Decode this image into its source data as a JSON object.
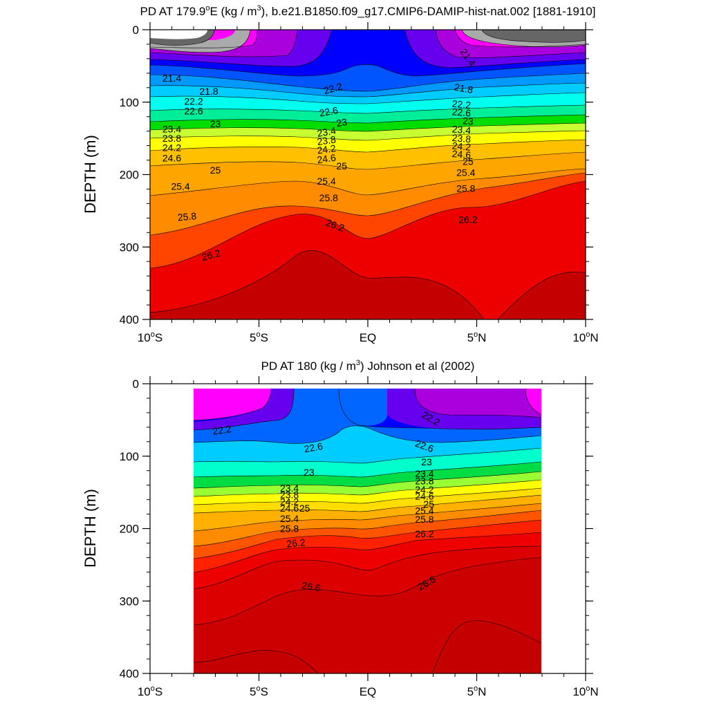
{
  "chart_data": [
    {
      "type": "contour",
      "title": "PD AT 179.9°E (kg / m³), b.e21.B1850.f09_g17.CMIP6-DAMIP-hist-nat.002 [1881-1910]",
      "title_parts": [
        "PD AT 179.9",
        "o",
        "E (kg / m",
        "3",
        "), b.e21.B1850.f09_g17.CMIP6-DAMIP-hist-nat.002 [1881-1910]"
      ],
      "ylabel": "DEPTH (m)",
      "xlim": [
        -10,
        10
      ],
      "ylim": [
        400,
        0
      ],
      "x_ticks": [
        {
          "value": -10,
          "label": "10",
          "sup": "o",
          "suffix": "S"
        },
        {
          "value": -5,
          "label": "5",
          "sup": "o",
          "suffix": "S"
        },
        {
          "value": 0,
          "label": "EQ",
          "sup": "",
          "suffix": ""
        },
        {
          "value": 5,
          "label": "5",
          "sup": "o",
          "suffix": "N"
        },
        {
          "value": 10,
          "label": "10",
          "sup": "o",
          "suffix": "N"
        }
      ],
      "y_ticks": [
        0,
        100,
        200,
        300,
        400
      ],
      "data_x_range": [
        -10,
        10
      ],
      "contour_labels": [
        {
          "x": -9.0,
          "y": 67,
          "text": "21.4",
          "rot": 0
        },
        {
          "x": -7.3,
          "y": 85,
          "text": "21.8",
          "rot": 0
        },
        {
          "x": -8.0,
          "y": 99,
          "text": "22.2",
          "rot": 0
        },
        {
          "x": -8.0,
          "y": 112,
          "text": "22.6",
          "rot": 0
        },
        {
          "x": -7.0,
          "y": 130,
          "text": "23",
          "rot": 0
        },
        {
          "x": -9.0,
          "y": 137,
          "text": "23.4",
          "rot": 0
        },
        {
          "x": -9.0,
          "y": 150,
          "text": "23.8",
          "rot": 0
        },
        {
          "x": -9.0,
          "y": 163,
          "text": "24.2",
          "rot": 0
        },
        {
          "x": -9.0,
          "y": 177,
          "text": "24.6",
          "rot": 0
        },
        {
          "x": -7.0,
          "y": 194,
          "text": "25",
          "rot": 0
        },
        {
          "x": -8.6,
          "y": 216,
          "text": "25.4",
          "rot": 0
        },
        {
          "x": -8.3,
          "y": 258,
          "text": "25.8",
          "rot": -5
        },
        {
          "x": -7.2,
          "y": 311,
          "text": "26.2",
          "rot": -15
        },
        {
          "x": -1.6,
          "y": 81,
          "text": "22.2",
          "rot": -15
        },
        {
          "x": -1.8,
          "y": 113,
          "text": "22.6",
          "rot": -10
        },
        {
          "x": -1.2,
          "y": 128,
          "text": "23",
          "rot": -10
        },
        {
          "x": -1.9,
          "y": 141,
          "text": "23.4",
          "rot": -10
        },
        {
          "x": -1.9,
          "y": 153,
          "text": "23.8",
          "rot": -8
        },
        {
          "x": -1.9,
          "y": 165,
          "text": "24.2",
          "rot": -8
        },
        {
          "x": -1.9,
          "y": 178,
          "text": "24.6",
          "rot": -8
        },
        {
          "x": -1.2,
          "y": 188,
          "text": "25",
          "rot": 0
        },
        {
          "x": -1.9,
          "y": 209,
          "text": "25.4",
          "rot": 0
        },
        {
          "x": -1.8,
          "y": 232,
          "text": "25.8",
          "rot": 0
        },
        {
          "x": -1.5,
          "y": 270,
          "text": "26.2",
          "rot": 20
        },
        {
          "x": 4.6,
          "y": 38,
          "text": "21.4",
          "rot": 55
        },
        {
          "x": 4.4,
          "y": 81,
          "text": "21.8",
          "rot": 10
        },
        {
          "x": 4.3,
          "y": 103,
          "text": "22.2",
          "rot": 5
        },
        {
          "x": 4.3,
          "y": 114,
          "text": "22.6",
          "rot": 5
        },
        {
          "x": 4.6,
          "y": 126,
          "text": "23",
          "rot": 5
        },
        {
          "x": 4.3,
          "y": 138,
          "text": "23.4",
          "rot": 5
        },
        {
          "x": 4.3,
          "y": 150,
          "text": "23.8",
          "rot": 5
        },
        {
          "x": 4.3,
          "y": 161,
          "text": "24.2",
          "rot": 5
        },
        {
          "x": 4.3,
          "y": 172,
          "text": "24.6",
          "rot": 5
        },
        {
          "x": 4.6,
          "y": 182,
          "text": "25",
          "rot": 0
        },
        {
          "x": 4.5,
          "y": 197,
          "text": "25.4",
          "rot": 0
        },
        {
          "x": 4.5,
          "y": 219,
          "text": "25.8",
          "rot": 0
        },
        {
          "x": 4.6,
          "y": 262,
          "text": "26.2",
          "rot": 0
        }
      ]
    },
    {
      "type": "contour",
      "title": "PD AT 180 (kg / m³) Johnson et al (2002)",
      "title_parts": [
        "PD AT 180 (kg / m",
        "3",
        ") Johnson et al (2002)",
        "",
        ""
      ],
      "ylabel": "DEPTH (m)",
      "xlim": [
        -10,
        10
      ],
      "ylim": [
        400,
        0
      ],
      "x_ticks": [
        {
          "value": -10,
          "label": "10",
          "sup": "o",
          "suffix": "S"
        },
        {
          "value": -5,
          "label": "5",
          "sup": "o",
          "suffix": "S"
        },
        {
          "value": 0,
          "label": "EQ",
          "sup": "",
          "suffix": ""
        },
        {
          "value": 5,
          "label": "5",
          "sup": "o",
          "suffix": "N"
        },
        {
          "value": 10,
          "label": "10",
          "sup": "o",
          "suffix": "N"
        }
      ],
      "y_ticks": [
        0,
        100,
        200,
        300,
        400
      ],
      "data_x_range": [
        -8,
        8
      ],
      "contour_labels": [
        {
          "x": -6.7,
          "y": 64,
          "text": "22.2",
          "rot": -8
        },
        {
          "x": -2.5,
          "y": 88,
          "text": "22.6",
          "rot": -10
        },
        {
          "x": -2.7,
          "y": 122,
          "text": "23",
          "rot": 0
        },
        {
          "x": -3.6,
          "y": 144,
          "text": "23.4",
          "rot": 0
        },
        {
          "x": -3.6,
          "y": 153,
          "text": "23.8",
          "rot": 0
        },
        {
          "x": -3.6,
          "y": 163,
          "text": "24.2",
          "rot": 0
        },
        {
          "x": -3.6,
          "y": 172,
          "text": "24.6",
          "rot": 0
        },
        {
          "x": -2.9,
          "y": 172,
          "text": "25",
          "rot": 0
        },
        {
          "x": -3.6,
          "y": 186,
          "text": "25.4",
          "rot": 0
        },
        {
          "x": -3.6,
          "y": 200,
          "text": "25.8",
          "rot": 0
        },
        {
          "x": -3.3,
          "y": 220,
          "text": "26.2",
          "rot": -5
        },
        {
          "x": -2.6,
          "y": 280,
          "text": "26.6",
          "rot": 10
        },
        {
          "x": 2.9,
          "y": 48,
          "text": "22.2",
          "rot": 30
        },
        {
          "x": 2.6,
          "y": 86,
          "text": "22.6",
          "rot": 20
        },
        {
          "x": 2.7,
          "y": 108,
          "text": "23",
          "rot": 0
        },
        {
          "x": 2.6,
          "y": 124,
          "text": "23.4",
          "rot": 0
        },
        {
          "x": 2.6,
          "y": 134,
          "text": "23.8",
          "rot": 0
        },
        {
          "x": 2.6,
          "y": 146,
          "text": "24.2",
          "rot": 0
        },
        {
          "x": 2.6,
          "y": 155,
          "text": "24.6",
          "rot": 0
        },
        {
          "x": 2.8,
          "y": 166,
          "text": "25",
          "rot": 0
        },
        {
          "x": 2.6,
          "y": 175,
          "text": "25.4",
          "rot": 0
        },
        {
          "x": 2.6,
          "y": 187,
          "text": "25.8",
          "rot": 0
        },
        {
          "x": 2.6,
          "y": 207,
          "text": "26.2",
          "rot": 0
        },
        {
          "x": 2.7,
          "y": 275,
          "text": "26.6",
          "rot": -30
        }
      ]
    }
  ]
}
